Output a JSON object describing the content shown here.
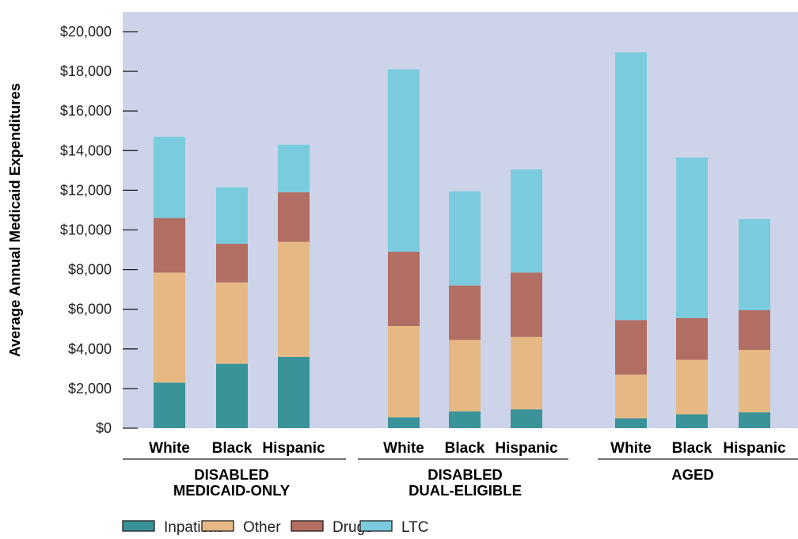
{
  "chart_data": {
    "type": "bar",
    "stacked": true,
    "ylabel": "Average Annual Medicaid Expenditures",
    "ylim": [
      0,
      21000
    ],
    "yticks": [
      "$0",
      "$2,000",
      "$4,000",
      "$6,000",
      "$8,000",
      "$10,000",
      "$12,000",
      "$14,000",
      "$16,000",
      "$18,000",
      "$20,000"
    ],
    "grid": false,
    "background": "#cdd3e9",
    "legend_position": "bottom-left",
    "groups": [
      {
        "name": "DISABLED MEDICAID-ONLY",
        "lines": [
          "DISABLED",
          "MEDICAID-ONLY"
        ],
        "categories": [
          "White",
          "Black",
          "Hispanic"
        ]
      },
      {
        "name": "DISABLED DUAL-ELIGIBLE",
        "lines": [
          "DISABLED",
          "DUAL-ELIGIBLE"
        ],
        "categories": [
          "White",
          "Black",
          "Hispanic"
        ]
      },
      {
        "name": "AGED",
        "lines": [
          "AGED"
        ],
        "categories": [
          "White",
          "Black",
          "Hispanic"
        ]
      }
    ],
    "series": [
      {
        "name": "Inpatient",
        "color": "#3a9399",
        "values": [
          2300,
          3250,
          3600,
          550,
          850,
          950,
          500,
          700,
          800
        ]
      },
      {
        "name": "Other",
        "color": "#e6b984",
        "values": [
          5550,
          4100,
          5800,
          4600,
          3600,
          3650,
          2200,
          2750,
          3150
        ]
      },
      {
        "name": "Drugs",
        "color": "#b26e62",
        "values": [
          2750,
          1950,
          2500,
          3750,
          2750,
          3250,
          2750,
          2100,
          2000
        ]
      },
      {
        "name": "LTC",
        "color": "#7bcbdf",
        "values": [
          4100,
          2850,
          2400,
          9200,
          4750,
          5200,
          13500,
          8100,
          4600
        ]
      }
    ]
  }
}
